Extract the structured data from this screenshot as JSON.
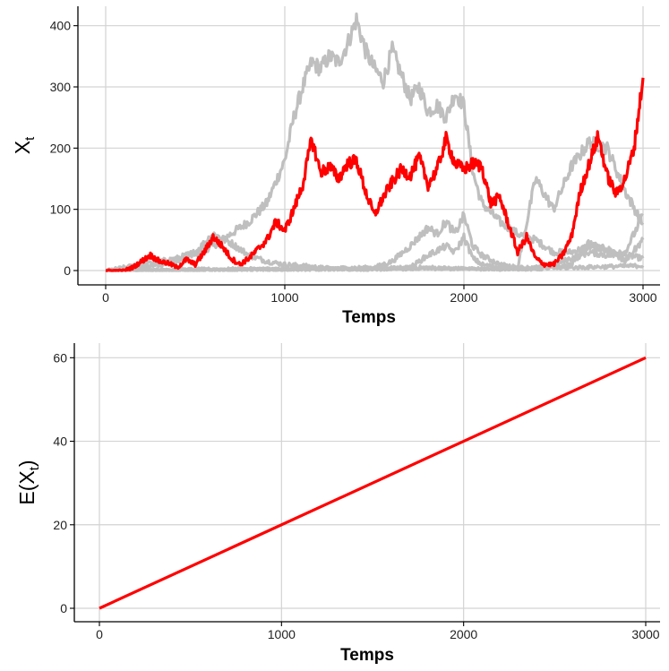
{
  "chart_data": [
    {
      "type": "line",
      "xlabel": "Temps",
      "ylabel": {
        "base": "X",
        "sub": "t"
      },
      "xlim": [
        0,
        3000
      ],
      "ylim": [
        0,
        420
      ],
      "x_ticks": [
        0,
        1000,
        2000,
        3000
      ],
      "y_ticks": [
        0,
        100,
        200,
        300,
        400
      ],
      "x_tick_labels": [
        "0",
        "1000",
        "2000",
        "3000"
      ],
      "y_tick_labels": [
        "0",
        "100",
        "200",
        "300",
        "400"
      ],
      "grid": true,
      "legend": "none",
      "colors": {
        "highlight": "#ff0000",
        "background_paths": "#bfbfbf"
      },
      "highlight_series": {
        "x": [
          0,
          100,
          150,
          200,
          250,
          300,
          350,
          400,
          450,
          500,
          550,
          600,
          650,
          700,
          750,
          800,
          850,
          900,
          950,
          1000,
          1050,
          1100,
          1150,
          1200,
          1250,
          1300,
          1350,
          1400,
          1450,
          1500,
          1550,
          1600,
          1650,
          1700,
          1750,
          1800,
          1850,
          1900,
          1950,
          2000,
          2050,
          2100,
          2150,
          2200,
          2250,
          2300,
          2350,
          2400,
          2450,
          2500,
          2550,
          2600,
          2650,
          2700,
          2750,
          2800,
          2850,
          2900,
          2950,
          3000
        ],
        "values": [
          0,
          0,
          5,
          15,
          25,
          15,
          12,
          5,
          18,
          10,
          30,
          55,
          40,
          20,
          10,
          20,
          35,
          50,
          80,
          65,
          100,
          140,
          215,
          160,
          170,
          150,
          175,
          180,
          130,
          90,
          120,
          145,
          165,
          155,
          185,
          140,
          165,
          215,
          175,
          165,
          175,
          170,
          110,
          120,
          75,
          30,
          55,
          20,
          10,
          10,
          25,
          55,
          130,
          175,
          220,
          155,
          125,
          150,
          200,
          315
        ]
      },
      "background_series": [
        {
          "x": [
            0,
            200,
            400,
            600,
            800,
            900,
            1000,
            1050,
            1100,
            1150,
            1200,
            1250,
            1300,
            1350,
            1400,
            1450,
            1500,
            1550,
            1600,
            1650,
            1700,
            1750,
            1800,
            1850,
            1900,
            1950,
            2000,
            2050,
            2100,
            2200,
            2300,
            2400,
            2500,
            2600,
            2700,
            2800,
            2900,
            3000
          ],
          "values": [
            0,
            5,
            15,
            40,
            80,
            110,
            180,
            250,
            300,
            340,
            330,
            350,
            340,
            370,
            410,
            360,
            330,
            310,
            360,
            320,
            280,
            300,
            260,
            270,
            250,
            290,
            270,
            160,
            110,
            80,
            60,
            50,
            30,
            30,
            40,
            35,
            25,
            20
          ]
        },
        {
          "x": [
            0,
            200,
            400,
            500,
            600,
            700,
            800,
            900,
            1000,
            1100,
            1200,
            1300,
            1400,
            1500,
            1600,
            1700,
            1800,
            1900,
            2000,
            2100,
            2200,
            2300,
            2400,
            2500,
            2600,
            2700,
            2800,
            2900,
            3000
          ],
          "values": [
            0,
            10,
            20,
            30,
            60,
            45,
            25,
            15,
            10,
            8,
            5,
            3,
            2,
            2,
            3,
            5,
            5,
            4,
            3,
            3,
            2,
            5,
            150,
            100,
            170,
            210,
            200,
            130,
            75
          ]
        },
        {
          "x": [
            0,
            500,
            1000,
            1500,
            1600,
            1700,
            1800,
            1850,
            1900,
            1950,
            2000,
            2050,
            2100,
            2200,
            2300,
            2400,
            2500,
            2600,
            2700,
            2800,
            2900,
            3000
          ],
          "values": [
            0,
            2,
            3,
            5,
            15,
            40,
            70,
            60,
            80,
            60,
            90,
            40,
            25,
            10,
            5,
            5,
            10,
            20,
            30,
            25,
            30,
            90
          ]
        },
        {
          "x": [
            0,
            500,
            1000,
            1500,
            1700,
            1800,
            1900,
            1950,
            2000,
            2050,
            2100,
            2200,
            2300,
            2400,
            2500,
            2600,
            2700,
            2800,
            2900,
            3000
          ],
          "values": [
            0,
            1,
            2,
            3,
            5,
            25,
            40,
            30,
            55,
            20,
            10,
            5,
            3,
            2,
            5,
            10,
            45,
            30,
            15,
            50
          ]
        },
        {
          "x": [
            0,
            500,
            1000,
            1500,
            2000,
            2500,
            3000
          ],
          "values": [
            0,
            1,
            2,
            3,
            3,
            4,
            8
          ]
        }
      ]
    },
    {
      "type": "line",
      "xlabel": "Temps",
      "ylabel": {
        "base": "E(X",
        "sub": "t",
        "end": ")"
      },
      "xlim": [
        0,
        3000
      ],
      "ylim": [
        0,
        60
      ],
      "x_ticks": [
        0,
        1000,
        2000,
        3000
      ],
      "y_ticks": [
        0,
        20,
        40,
        60
      ],
      "x_tick_labels": [
        "0",
        "1000",
        "2000",
        "3000"
      ],
      "y_tick_labels": [
        "0",
        "20",
        "40",
        "60"
      ],
      "grid": true,
      "legend": "none",
      "colors": {
        "line": "#ff0000"
      },
      "series": [
        {
          "x": [
            0,
            3000
          ],
          "values": [
            0,
            60
          ]
        }
      ]
    }
  ]
}
